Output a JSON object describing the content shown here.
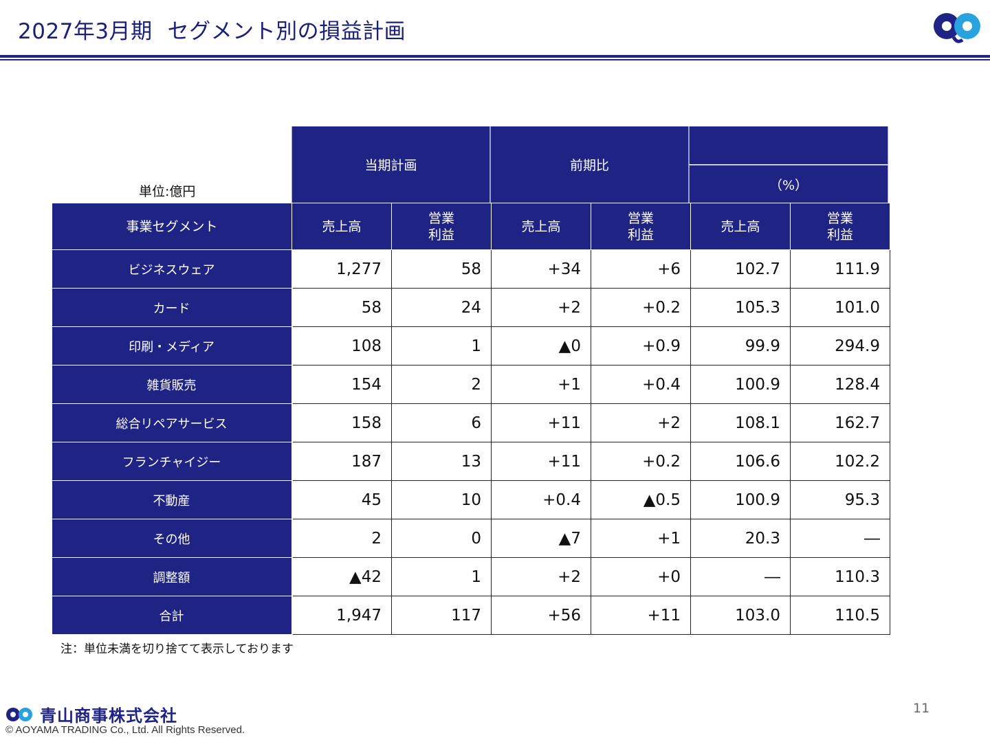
{
  "header": {
    "title": "2027年3月期",
    "subtitle": "セグメント別の損益計画",
    "brand_color": "#1f2383"
  },
  "table": {
    "unit_label": "単位:億円",
    "group_headers": {
      "plan": "当期計画",
      "yoy": "前期比",
      "ratio_top": "",
      "ratio": "（%）"
    },
    "sub_headers": {
      "segment": "事業セグメント",
      "plan_sales": "売上高",
      "plan_op": "営業\n利益",
      "yoy_sales": "売上高",
      "yoy_op": "営業\n利益",
      "ratio_sales": "売上高",
      "ratio_op": "営業\n利益"
    },
    "rows": [
      {
        "name": "ビジネスウェア",
        "v": [
          "1,277",
          "58",
          "+34",
          "+6",
          "102.7",
          "111.9"
        ]
      },
      {
        "name": "カード",
        "v": [
          "58",
          "24",
          "+2",
          "+0.2",
          "105.3",
          "101.0"
        ]
      },
      {
        "name": "印刷・メディア",
        "v": [
          "108",
          "1",
          "▲0",
          "+0.9",
          "99.9",
          "294.9"
        ]
      },
      {
        "name": "雑貨販売",
        "v": [
          "154",
          "2",
          "+1",
          "+0.4",
          "100.9",
          "128.4"
        ]
      },
      {
        "name": "総合リペアサービス",
        "v": [
          "158",
          "6",
          "+11",
          "+2",
          "108.1",
          "162.7"
        ]
      },
      {
        "name": "フランチャイジー",
        "v": [
          "187",
          "13",
          "+11",
          "+0.2",
          "106.6",
          "102.2"
        ]
      },
      {
        "name": "不動産",
        "v": [
          "45",
          "10",
          "+0.4",
          "▲0.5",
          "100.9",
          "95.3"
        ]
      },
      {
        "name": "その他",
        "v": [
          "2",
          "0",
          "▲7",
          "+1",
          "20.3",
          "―"
        ]
      },
      {
        "name": "調整額",
        "v": [
          "▲42",
          "1",
          "+2",
          "+0",
          "―",
          "110.3"
        ]
      },
      {
        "name": "合計",
        "v": [
          "1,947",
          "117",
          "+56",
          "+11",
          "103.0",
          "110.5"
        ]
      }
    ]
  },
  "note": "注：単位未満を切り捨てて表示しております",
  "footer": {
    "company": "青山商事株式会社",
    "copyright": "© AOYAMA TRADING Co., Ltd. All Rights Reserved.",
    "page_number": "11"
  }
}
